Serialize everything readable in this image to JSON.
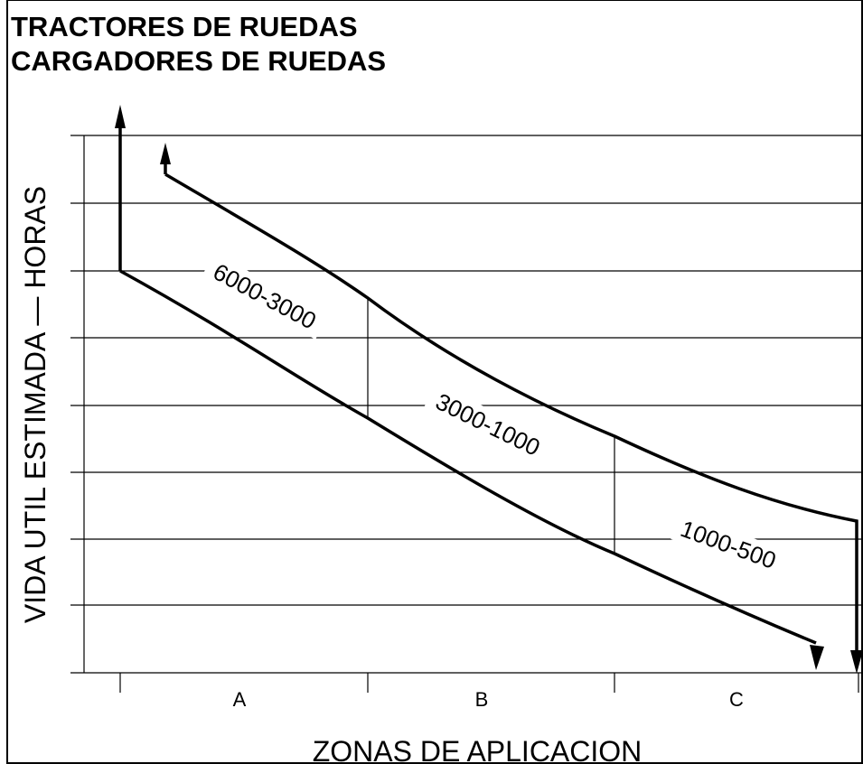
{
  "title": [
    "TRACTORES DE RUEDAS",
    "CARGADORES DE RUEDAS"
  ],
  "y_axis_label": "VIDA UTIL ESTIMADA — HORAS",
  "x_axis_label": "ZONAS DE APLICACION",
  "bands": [
    "6000-3000",
    "3000-1000",
    "1000-500"
  ],
  "zones": [
    "A",
    "B",
    "C"
  ]
}
